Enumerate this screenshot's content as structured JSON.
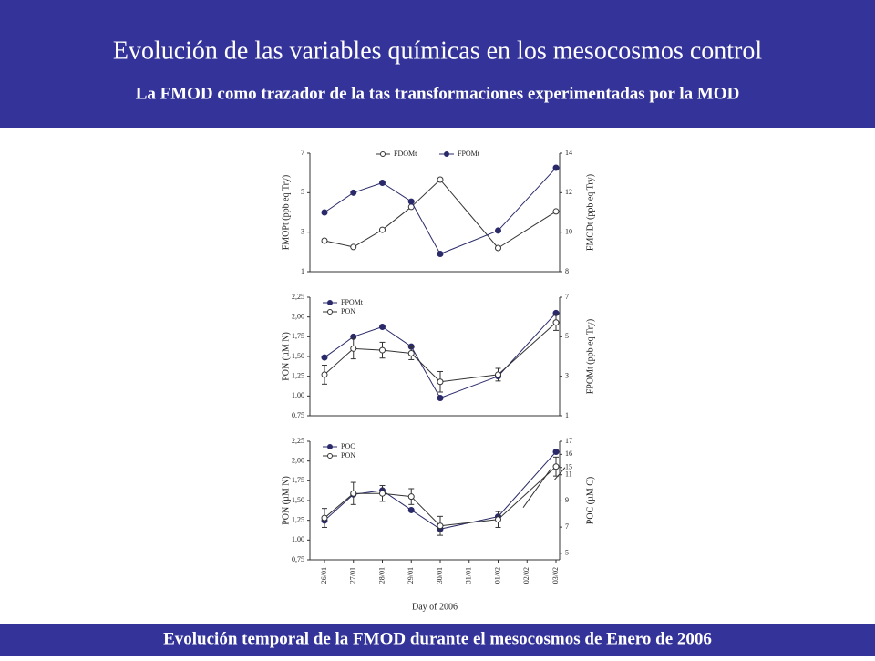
{
  "header": {
    "title": "Evolución de las variables químicas en los mesocosmos control",
    "subtitle": "La FMOD como trazador de la tas transformaciones experimentadas por la MOD"
  },
  "footer": "Evolución temporal de la FMOD durante el mesocosmos de Enero de 2006",
  "chart_data": [
    {
      "type": "line",
      "ylabel": "FMOPt (ppb eq Try)",
      "y2label": "FMODt (ppb eq Try)",
      "ylim": [
        1,
        7
      ],
      "yticks": [
        1,
        3,
        5,
        7
      ],
      "y2lim": [
        8,
        14
      ],
      "y2ticks": [
        8,
        10,
        12,
        14
      ],
      "legend": "top",
      "series": [
        {
          "name": "FDOMt",
          "color": "#333333",
          "marker": "open",
          "axis": "y2",
          "values": [
            9.57,
            9.25,
            10.12,
            11.28,
            12.66,
            null,
            9.2,
            null,
            11.05
          ]
        },
        {
          "name": "FPOMt",
          "color": "#2a2a6a",
          "marker": "filled",
          "values": [
            4.0,
            5.0,
            5.5,
            4.55,
            1.9,
            null,
            3.08,
            null,
            6.26
          ]
        }
      ]
    },
    {
      "type": "line",
      "ylabel": "PON (µM N)",
      "y2label": "FPOMt (ppb eq Try)",
      "ylim": [
        0.75,
        2.25
      ],
      "yticks": [
        {
          "value": 0.75,
          "label": "0,75"
        },
        {
          "value": 1.0,
          "label": "1,00"
        },
        {
          "value": 1.25,
          "label": "1,25"
        },
        {
          "value": 1.5,
          "label": "1,50"
        },
        {
          "value": 1.75,
          "label": "1,75"
        },
        {
          "value": 2.0,
          "label": "2,00"
        },
        {
          "value": 2.25,
          "label": "2,25"
        }
      ],
      "y2lim": [
        1,
        7
      ],
      "y2ticks": [
        1,
        3,
        5,
        7
      ],
      "legend": "top left",
      "series": [
        {
          "name": "FPOMt",
          "color": "#2a2a6a",
          "marker": "filled",
          "axis": "y2",
          "values": [
            3.95,
            5.0,
            5.5,
            4.5,
            1.9,
            null,
            3.0,
            null,
            6.2
          ]
        },
        {
          "name": "PON",
          "color": "#333333",
          "marker": "open",
          "values": [
            1.27,
            1.6,
            1.58,
            1.54,
            1.18,
            null,
            1.27,
            null,
            1.93
          ],
          "errors": [
            0.12,
            0.13,
            0.1,
            0.08,
            0.13,
            null,
            0.08,
            null,
            0.1
          ]
        }
      ]
    },
    {
      "type": "line",
      "ylabel": "PON (µM N)",
      "y2label": "POC (µM C)",
      "xlabel": "Day of 2006",
      "categories": [
        "26/01",
        "27/01",
        "28/01",
        "29/01",
        "30/01",
        "31/01",
        "01/02",
        "02/02",
        "03/02"
      ],
      "ylim": [
        0.75,
        2.25
      ],
      "yticks": [
        {
          "value": 0.75,
          "label": "0,75"
        },
        {
          "value": 1.0,
          "label": "1,00"
        },
        {
          "value": 1.25,
          "label": "1,25"
        },
        {
          "value": 1.5,
          "label": "1,50"
        },
        {
          "value": 1.75,
          "label": "1,75"
        },
        {
          "value": 2.0,
          "label": "2,00"
        },
        {
          "value": 2.25,
          "label": "2,25"
        }
      ],
      "y2lim": [
        4.5,
        17
      ],
      "y2break": [
        11,
        15
      ],
      "y2ticks": [
        5,
        7,
        9,
        11,
        15,
        16,
        17
      ],
      "legend": "top left",
      "series": [
        {
          "name": "POC",
          "color": "#2a2a6a",
          "marker": "filled",
          "axis": "y2",
          "values": [
            7.5,
            9.5,
            9.8,
            8.3,
            6.85,
            null,
            7.8,
            null,
            16.2
          ]
        },
        {
          "name": "PON",
          "color": "#333333",
          "marker": "open",
          "values": [
            1.28,
            1.59,
            1.59,
            1.55,
            1.18,
            null,
            1.26,
            null,
            1.93
          ],
          "errors": [
            0.12,
            0.14,
            0.1,
            0.1,
            0.12,
            null,
            0.1,
            null,
            0.12
          ]
        }
      ]
    }
  ]
}
